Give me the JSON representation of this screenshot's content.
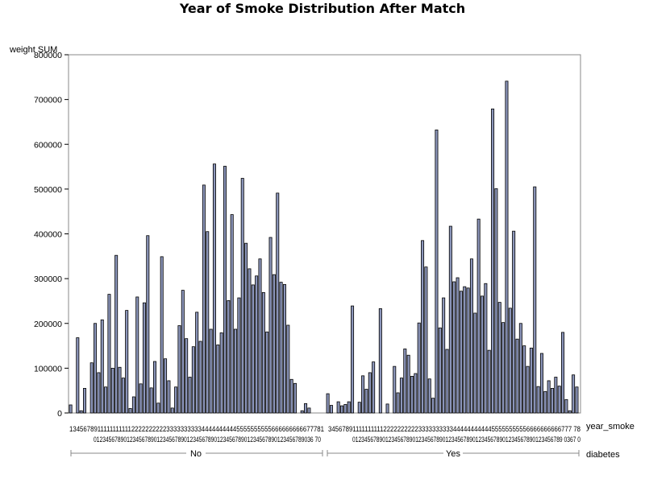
{
  "chart_data": {
    "type": "bar",
    "title": "Year of Smoke Distribution After Match",
    "ylabel": "weight SUM",
    "xlabel": "year_smoke",
    "group_label": "diabetes",
    "ylim": [
      0,
      800000
    ],
    "yticks": [
      0,
      100000,
      200000,
      300000,
      400000,
      500000,
      600000,
      700000,
      800000
    ],
    "ytick_labels": [
      "0",
      "100000",
      "200000",
      "300000",
      "400000",
      "500000",
      "600000",
      "700000",
      "800000"
    ],
    "grid": false,
    "bar_color": "#8b95ba",
    "groups": [
      {
        "name": "No",
        "categories": [
          "1",
          "3",
          "4",
          "5",
          "6",
          "7",
          "8",
          "9",
          "10",
          "11",
          "12",
          "13",
          "14",
          "15",
          "16",
          "17",
          "18",
          "19",
          "20",
          "21",
          "22",
          "23",
          "24",
          "25",
          "26",
          "27",
          "28",
          "29",
          "30",
          "31",
          "32",
          "33",
          "34",
          "35",
          "36",
          "37",
          "38",
          "39",
          "40",
          "41",
          "42",
          "43",
          "44",
          "45",
          "46",
          "47",
          "48",
          "49",
          "50",
          "51",
          "52",
          "53",
          "54",
          "55",
          "56",
          "57",
          "58",
          "59",
          "60",
          "61",
          "62",
          "63",
          "64",
          "65",
          "66",
          "67",
          "68",
          "69",
          "70",
          "73",
          "76",
          "77",
          "78"
        ],
        "values": [
          18000,
          0,
          168000,
          5000,
          55000,
          0,
          112000,
          200000,
          90000,
          208000,
          58000,
          265000,
          100000,
          352000,
          102000,
          78000,
          229000,
          10000,
          36000,
          259000,
          65000,
          246000,
          396000,
          56000,
          115000,
          22000,
          349000,
          121000,
          72000,
          11000,
          58000,
          195000,
          274000,
          166000,
          80000,
          148000,
          225000,
          160000,
          509000,
          405000,
          187000,
          556000,
          152000,
          179000,
          551000,
          251000,
          443000,
          187000,
          257000,
          524000,
          379000,
          322000,
          286000,
          306000,
          344000,
          269000,
          181000,
          392000,
          309000,
          491000,
          292000,
          287000,
          196000,
          75000,
          66000,
          0,
          5000,
          21000,
          11000,
          0,
          0,
          0,
          0
        ]
      },
      {
        "name": "Yes",
        "categories": [
          "1",
          "3",
          "4",
          "5",
          "6",
          "7",
          "8",
          "9",
          "10",
          "11",
          "12",
          "13",
          "14",
          "15",
          "16",
          "17",
          "18",
          "19",
          "20",
          "21",
          "22",
          "23",
          "24",
          "25",
          "26",
          "27",
          "28",
          "29",
          "30",
          "31",
          "32",
          "33",
          "34",
          "35",
          "36",
          "37",
          "38",
          "39",
          "40",
          "41",
          "42",
          "43",
          "44",
          "45",
          "46",
          "47",
          "48",
          "49",
          "50",
          "51",
          "52",
          "53",
          "54",
          "55",
          "56",
          "57",
          "58",
          "59",
          "60",
          "61",
          "62",
          "63",
          "64",
          "65",
          "66",
          "67",
          "68",
          "69",
          "70",
          "73",
          "76",
          "77",
          "78"
        ],
        "values": [
          43000,
          17000,
          0,
          25000,
          16000,
          19000,
          25000,
          239000,
          0,
          24000,
          83000,
          53000,
          90000,
          114000,
          0,
          233000,
          0,
          20000,
          0,
          104000,
          45000,
          78000,
          143000,
          129000,
          82000,
          88000,
          201000,
          385000,
          326000,
          76000,
          33000,
          632000,
          190000,
          257000,
          142000,
          417000,
          293000,
          302000,
          272000,
          282000,
          279000,
          344000,
          223000,
          433000,
          261000,
          289000,
          140000,
          679000,
          501000,
          247000,
          202000,
          741000,
          234000,
          406000,
          165000,
          200000,
          150000,
          104000,
          145000,
          505000,
          59000,
          133000,
          48000,
          72000,
          55000,
          80000,
          60000,
          180000,
          30000,
          5000,
          85000,
          58000,
          0
        ]
      }
    ]
  },
  "x_tick_rows": {
    "no_row1": "13456789111111111112222222222333333333344444444445555555555666666666677781",
    "no_row2": "0123456789012345678901234567890123456789012345678901234567890123456789036 70",
    "yes_row1": "34567891111111111222222222233333333334444444444455555555556666666666777 78",
    "yes_row2": "0123456789012345678901234567890123456789012345678901234567890123456789 0367 0"
  }
}
